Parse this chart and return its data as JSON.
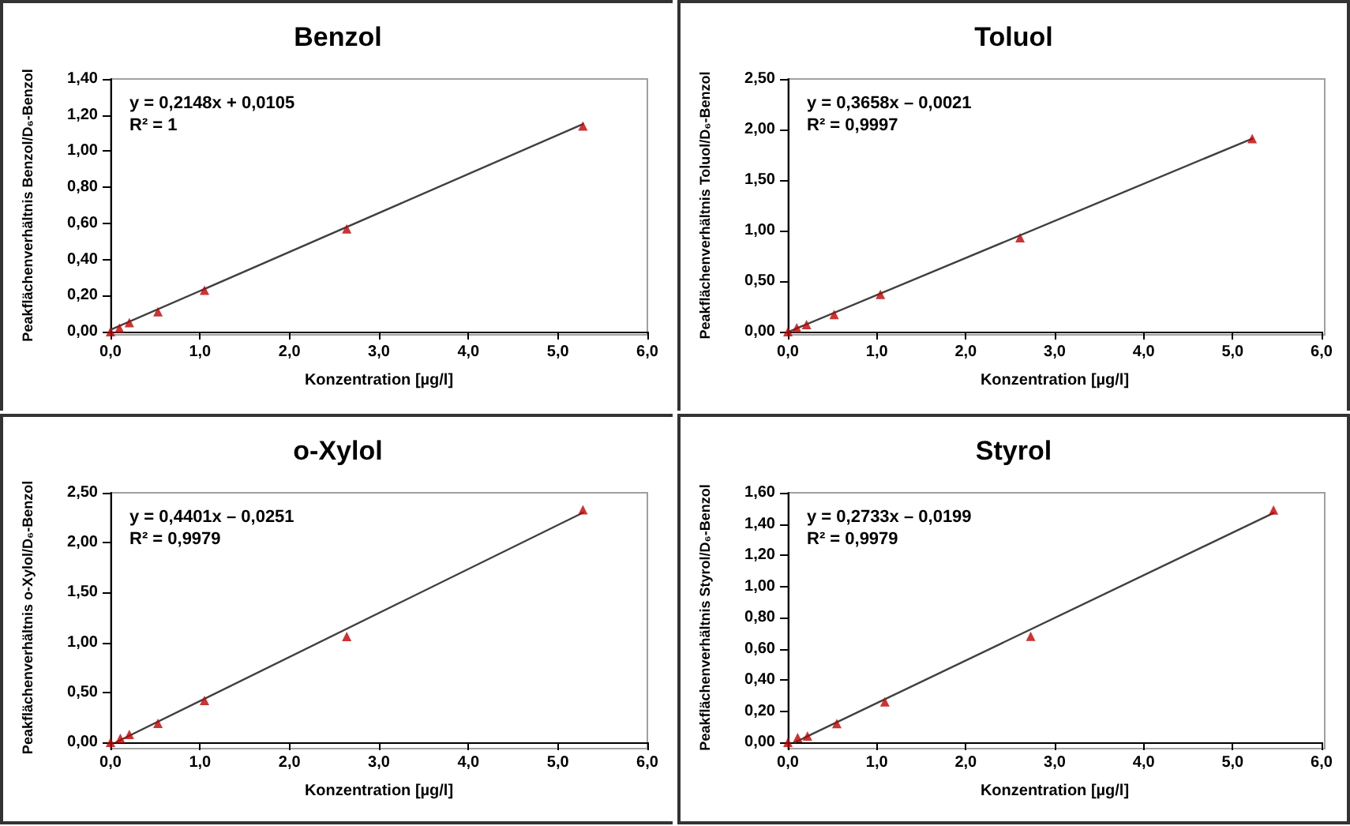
{
  "chart_data": [
    {
      "type": "scatter",
      "title": "Benzol",
      "xlabel": "Konzentration [µg/l]",
      "ylabel": "Peakflächenverhältnis Benzol/D₆-Benzol",
      "annotations": [
        "y = 0,2148x + 0,0105",
        "R² = 1"
      ],
      "marker": "triangle",
      "xlim": [
        0,
        6
      ],
      "xticks": [
        {
          "value": 0,
          "label": "0,0"
        },
        {
          "value": 1,
          "label": "1,0"
        },
        {
          "value": 2,
          "label": "2,0"
        },
        {
          "value": 3,
          "label": "3,0"
        },
        {
          "value": 4,
          "label": "4,0"
        },
        {
          "value": 5,
          "label": "5,0"
        },
        {
          "value": 6,
          "label": "6,0"
        }
      ],
      "ylim": [
        0,
        1.4
      ],
      "yticks": [
        {
          "value": 0,
          "label": "0,00"
        },
        {
          "value": 0.2,
          "label": "0,20"
        },
        {
          "value": 0.4,
          "label": "0,40"
        },
        {
          "value": 0.6,
          "label": "0,60"
        },
        {
          "value": 0.8,
          "label": "0,80"
        },
        {
          "value": 1,
          "label": "1,00"
        },
        {
          "value": 1.2,
          "label": "1,20"
        },
        {
          "value": 1.4,
          "label": "1,40"
        }
      ],
      "series": [
        {
          "type": "line",
          "color": "#404040",
          "marker": "none",
          "x": [
            0,
            5.28
          ],
          "values": [
            0.01,
            1.15
          ]
        },
        {
          "color": "#c00000",
          "x": [
            0,
            0.1,
            0.21,
            0.53,
            1.05,
            2.64,
            5.28
          ],
          "values": [
            0,
            0.02,
            0.05,
            0.11,
            0.23,
            0.57,
            1.14
          ]
        }
      ]
    },
    {
      "type": "scatter",
      "title": "Toluol",
      "xlabel": "Konzentration [µg/l]",
      "ylabel": "Peakflächenverhältnis Toluol/D₆-Benzol",
      "annotations": [
        "y = 0,3658x – 0,0021",
        "R² = 0,9997"
      ],
      "marker": "triangle",
      "xlim": [
        0,
        6
      ],
      "xticks": [
        {
          "value": 0,
          "label": "0,0"
        },
        {
          "value": 1,
          "label": "1,0"
        },
        {
          "value": 2,
          "label": "2,0"
        },
        {
          "value": 3,
          "label": "3,0"
        },
        {
          "value": 4,
          "label": "4,0"
        },
        {
          "value": 5,
          "label": "5,0"
        },
        {
          "value": 6,
          "label": "6,0"
        }
      ],
      "ylim": [
        0,
        2.5
      ],
      "yticks": [
        {
          "value": 0,
          "label": "0,00"
        },
        {
          "value": 0.5,
          "label": "0,50"
        },
        {
          "value": 1,
          "label": "1,00"
        },
        {
          "value": 1.5,
          "label": "1,50"
        },
        {
          "value": 2,
          "label": "2,00"
        },
        {
          "value": 2.5,
          "label": "2,50"
        }
      ],
      "series": [
        {
          "type": "line",
          "color": "#404040",
          "marker": "none",
          "x": [
            0.01,
            5.22
          ],
          "values": [
            0,
            1.91
          ]
        },
        {
          "color": "#c00000",
          "x": [
            0,
            0.1,
            0.21,
            0.52,
            1.04,
            2.61,
            5.22
          ],
          "values": [
            0,
            0.04,
            0.07,
            0.17,
            0.37,
            0.93,
            1.91
          ]
        }
      ]
    },
    {
      "type": "scatter",
      "title": "o-Xylol",
      "xlabel": "Konzentration [µg/l]",
      "ylabel": "Peakflächenverhältnis o-Xylol/D₆-Benzol",
      "annotations": [
        "y = 0,4401x – 0,0251",
        "R² = 0,9979"
      ],
      "marker": "triangle",
      "xlim": [
        0,
        6
      ],
      "xticks": [
        {
          "value": 0,
          "label": "0,0"
        },
        {
          "value": 1,
          "label": "1,0"
        },
        {
          "value": 2,
          "label": "2,0"
        },
        {
          "value": 3,
          "label": "3,0"
        },
        {
          "value": 4,
          "label": "4,0"
        },
        {
          "value": 5,
          "label": "5,0"
        },
        {
          "value": 6,
          "label": "6,0"
        }
      ],
      "ylim": [
        0,
        2.5
      ],
      "yticks": [
        {
          "value": 0,
          "label": "0,00"
        },
        {
          "value": 0.5,
          "label": "0,50"
        },
        {
          "value": 1,
          "label": "1,00"
        },
        {
          "value": 1.5,
          "label": "1,50"
        },
        {
          "value": 2,
          "label": "2,00"
        },
        {
          "value": 2.5,
          "label": "2,50"
        }
      ],
      "series": [
        {
          "type": "line",
          "color": "#404040",
          "marker": "none",
          "x": [
            0.06,
            5.28
          ],
          "values": [
            0,
            2.3
          ]
        },
        {
          "color": "#c00000",
          "x": [
            0,
            0.11,
            0.21,
            0.53,
            1.05,
            2.64,
            5.28
          ],
          "values": [
            0,
            0.04,
            0.08,
            0.19,
            0.42,
            1.06,
            2.33
          ]
        }
      ]
    },
    {
      "type": "scatter",
      "title": "Styrol",
      "xlabel": "Konzentration [µg/l]",
      "ylabel": "Peakflächenverhältnis Styrol/D₆-Benzol",
      "annotations": [
        "y = 0,2733x – 0,0199",
        "R² = 0,9979"
      ],
      "marker": "triangle",
      "xlim": [
        0,
        6
      ],
      "xticks": [
        {
          "value": 0,
          "label": "0,0"
        },
        {
          "value": 1,
          "label": "1,0"
        },
        {
          "value": 2,
          "label": "2,0"
        },
        {
          "value": 3,
          "label": "3,0"
        },
        {
          "value": 4,
          "label": "4,0"
        },
        {
          "value": 5,
          "label": "5,0"
        },
        {
          "value": 6,
          "label": "6,0"
        }
      ],
      "ylim": [
        0,
        1.6
      ],
      "yticks": [
        {
          "value": 0,
          "label": "0,00"
        },
        {
          "value": 0.2,
          "label": "0,20"
        },
        {
          "value": 0.4,
          "label": "0,40"
        },
        {
          "value": 0.6,
          "label": "0,60"
        },
        {
          "value": 0.8,
          "label": "0,80"
        },
        {
          "value": 1,
          "label": "1,00"
        },
        {
          "value": 1.2,
          "label": "1,20"
        },
        {
          "value": 1.4,
          "label": "1,40"
        },
        {
          "value": 1.6,
          "label": "1,60"
        }
      ],
      "series": [
        {
          "type": "line",
          "color": "#404040",
          "marker": "none",
          "x": [
            0.08,
            5.46
          ],
          "values": [
            0,
            1.47
          ]
        },
        {
          "color": "#c00000",
          "x": [
            0,
            0.11,
            0.22,
            0.55,
            1.09,
            2.73,
            5.46
          ],
          "values": [
            0,
            0.03,
            0.04,
            0.12,
            0.26,
            0.68,
            1.49
          ]
        }
      ]
    }
  ]
}
